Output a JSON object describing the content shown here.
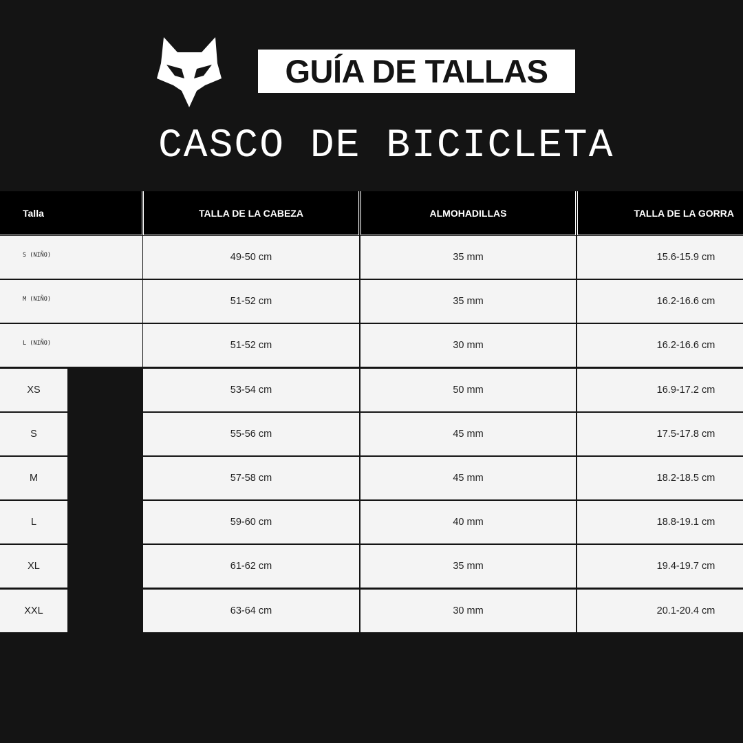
{
  "header": {
    "badge": "GUÍA DE TALLAS",
    "subtitle": "CASCO DE BICICLETA"
  },
  "table": {
    "columns": [
      "Talla",
      "TALLA DE LA CABEZA",
      "ALMOHADILLAS",
      "TALLA DE LA GORRA"
    ],
    "rows": [
      [
        "S (NIÑO)",
        "49-50 cm",
        "35 mm",
        "15.6-15.9 cm"
      ],
      [
        "M (NIÑO)",
        "51-52 cm",
        "35 mm",
        "16.2-16.6 cm"
      ],
      [
        "L (NIÑO)",
        "51-52 cm",
        "30 mm",
        "16.2-16.6 cm"
      ],
      [
        "XS",
        "53-54 cm",
        "50 mm",
        "16.9-17.2 cm"
      ],
      [
        "S",
        "55-56 cm",
        "45 mm",
        "17.5-17.8 cm"
      ],
      [
        "M",
        "57-58 cm",
        "45 mm",
        "18.2-18.5 cm"
      ],
      [
        "L",
        "59-60 cm",
        "40 mm",
        "18.8-19.1 cm"
      ],
      [
        "XL",
        "61-62 cm",
        "35 mm",
        "19.4-19.7 cm"
      ],
      [
        "XXL",
        "63-64 cm",
        "30 mm",
        "20.1-20.4 cm"
      ]
    ]
  }
}
